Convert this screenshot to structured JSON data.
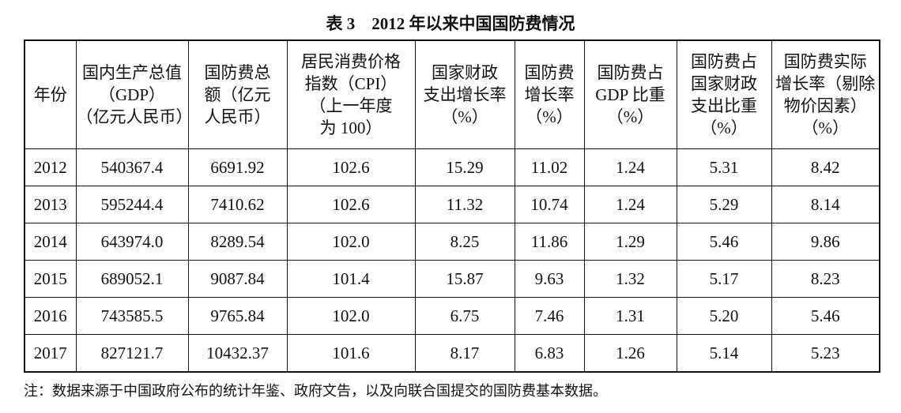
{
  "title": "表 3　2012 年以来中国国防费情况",
  "table": {
    "header": [
      [
        "年份"
      ],
      [
        "国内生产总值",
        "（GDP）",
        "（亿元人民币）"
      ],
      [
        "国防费总",
        "额（亿元",
        "人民币）"
      ],
      [
        "居民消费价格",
        "指数（CPI）",
        "（上一年度",
        "为 100）"
      ],
      [
        "国家财政",
        "支出增长率",
        "（%）"
      ],
      [
        "国防费",
        "增长率",
        "（%）"
      ],
      [
        "国防费占",
        "GDP 比重",
        "（%）"
      ],
      [
        "国防费占",
        "国家财政",
        "支出比重",
        "（%）"
      ],
      [
        "国防费实际",
        "增长率（剔除",
        "物价因素）",
        "（%）"
      ]
    ],
    "rows": [
      [
        "2012",
        "540367.4",
        "6691.92",
        "102.6",
        "15.29",
        "11.02",
        "1.24",
        "5.31",
        "8.42"
      ],
      [
        "2013",
        "595244.4",
        "7410.62",
        "102.6",
        "11.32",
        "10.74",
        "1.24",
        "5.29",
        "8.14"
      ],
      [
        "2014",
        "643974.0",
        "8289.54",
        "102.0",
        "8.25",
        "11.86",
        "1.29",
        "5.46",
        "9.86"
      ],
      [
        "2015",
        "689052.1",
        "9087.84",
        "101.4",
        "15.87",
        "9.63",
        "1.32",
        "5.17",
        "8.23"
      ],
      [
        "2016",
        "743585.5",
        "9765.84",
        "102.0",
        "6.75",
        "7.46",
        "1.31",
        "5.20",
        "5.46"
      ],
      [
        "2017",
        "827121.7",
        "10432.37",
        "101.6",
        "8.17",
        "6.83",
        "1.26",
        "5.14",
        "5.23"
      ]
    ]
  },
  "note": "注：数据来源于中国政府公布的统计年鉴、政府文告，以及向联合国提交的国防费基本数据。"
}
